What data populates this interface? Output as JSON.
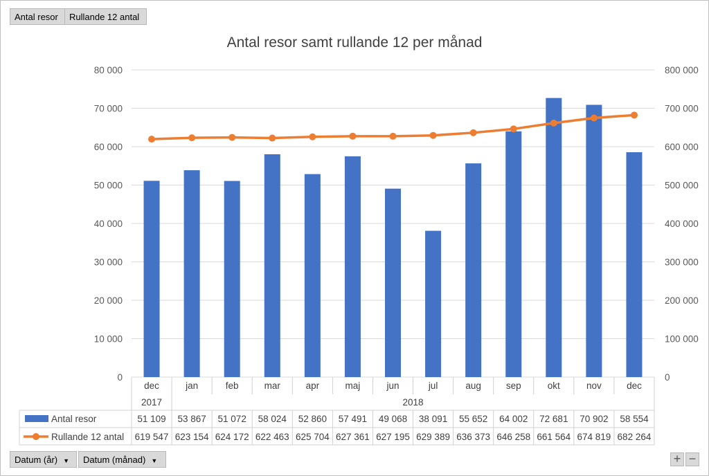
{
  "field_buttons": {
    "antal_resor": "Antal resor",
    "rullande": "Rullande 12 antal",
    "datum_ar": "Datum (år)",
    "datum_manad": "Datum (månad)"
  },
  "zoom": {
    "plus": "+",
    "minus": "−"
  },
  "colors": {
    "bar": "#4472c4",
    "line": "#ed7d31",
    "grid": "#d9d9d9",
    "text": "#595959"
  },
  "chart_data": {
    "type": "bar",
    "title": "Antal resor samt rullande 12 per månad",
    "categories": [
      "dec",
      "jan",
      "feb",
      "mar",
      "apr",
      "maj",
      "jun",
      "jul",
      "aug",
      "sep",
      "okt",
      "nov",
      "dec"
    ],
    "years": [
      {
        "label": "2017",
        "span": 1
      },
      {
        "label": "2018",
        "span": 12
      }
    ],
    "y_left": {
      "min": 0,
      "max": 80000,
      "ticks": [
        "0",
        "10 000",
        "20 000",
        "30 000",
        "40 000",
        "50 000",
        "60 000",
        "70 000",
        "80 000"
      ]
    },
    "y_right": {
      "min": 0,
      "max": 800000,
      "ticks": [
        "0",
        "100 000",
        "200 000",
        "300 000",
        "400 000",
        "500 000",
        "600 000",
        "700 000",
        "800 000"
      ]
    },
    "grid": true,
    "series": [
      {
        "name": "Antal resor",
        "kind": "bar",
        "axis": "left",
        "values": [
          51109,
          53867,
          51072,
          58024,
          52860,
          57491,
          49068,
          38091,
          55652,
          64002,
          72681,
          70902,
          58554
        ],
        "labels": [
          "51 109",
          "53 867",
          "51 072",
          "58 024",
          "52 860",
          "57 491",
          "49 068",
          "38 091",
          "55 652",
          "64 002",
          "72 681",
          "70 902",
          "58 554"
        ]
      },
      {
        "name": "Rullande 12 antal",
        "kind": "line",
        "axis": "right",
        "values": [
          619547,
          623154,
          624172,
          622463,
          625704,
          627361,
          627195,
          629389,
          636373,
          646258,
          661564,
          674819,
          682264
        ],
        "labels": [
          "619 547",
          "623 154",
          "624 172",
          "622 463",
          "625 704",
          "627 361",
          "627 195",
          "629 389",
          "636 373",
          "646 258",
          "661 564",
          "674 819",
          "682 264"
        ]
      }
    ]
  }
}
